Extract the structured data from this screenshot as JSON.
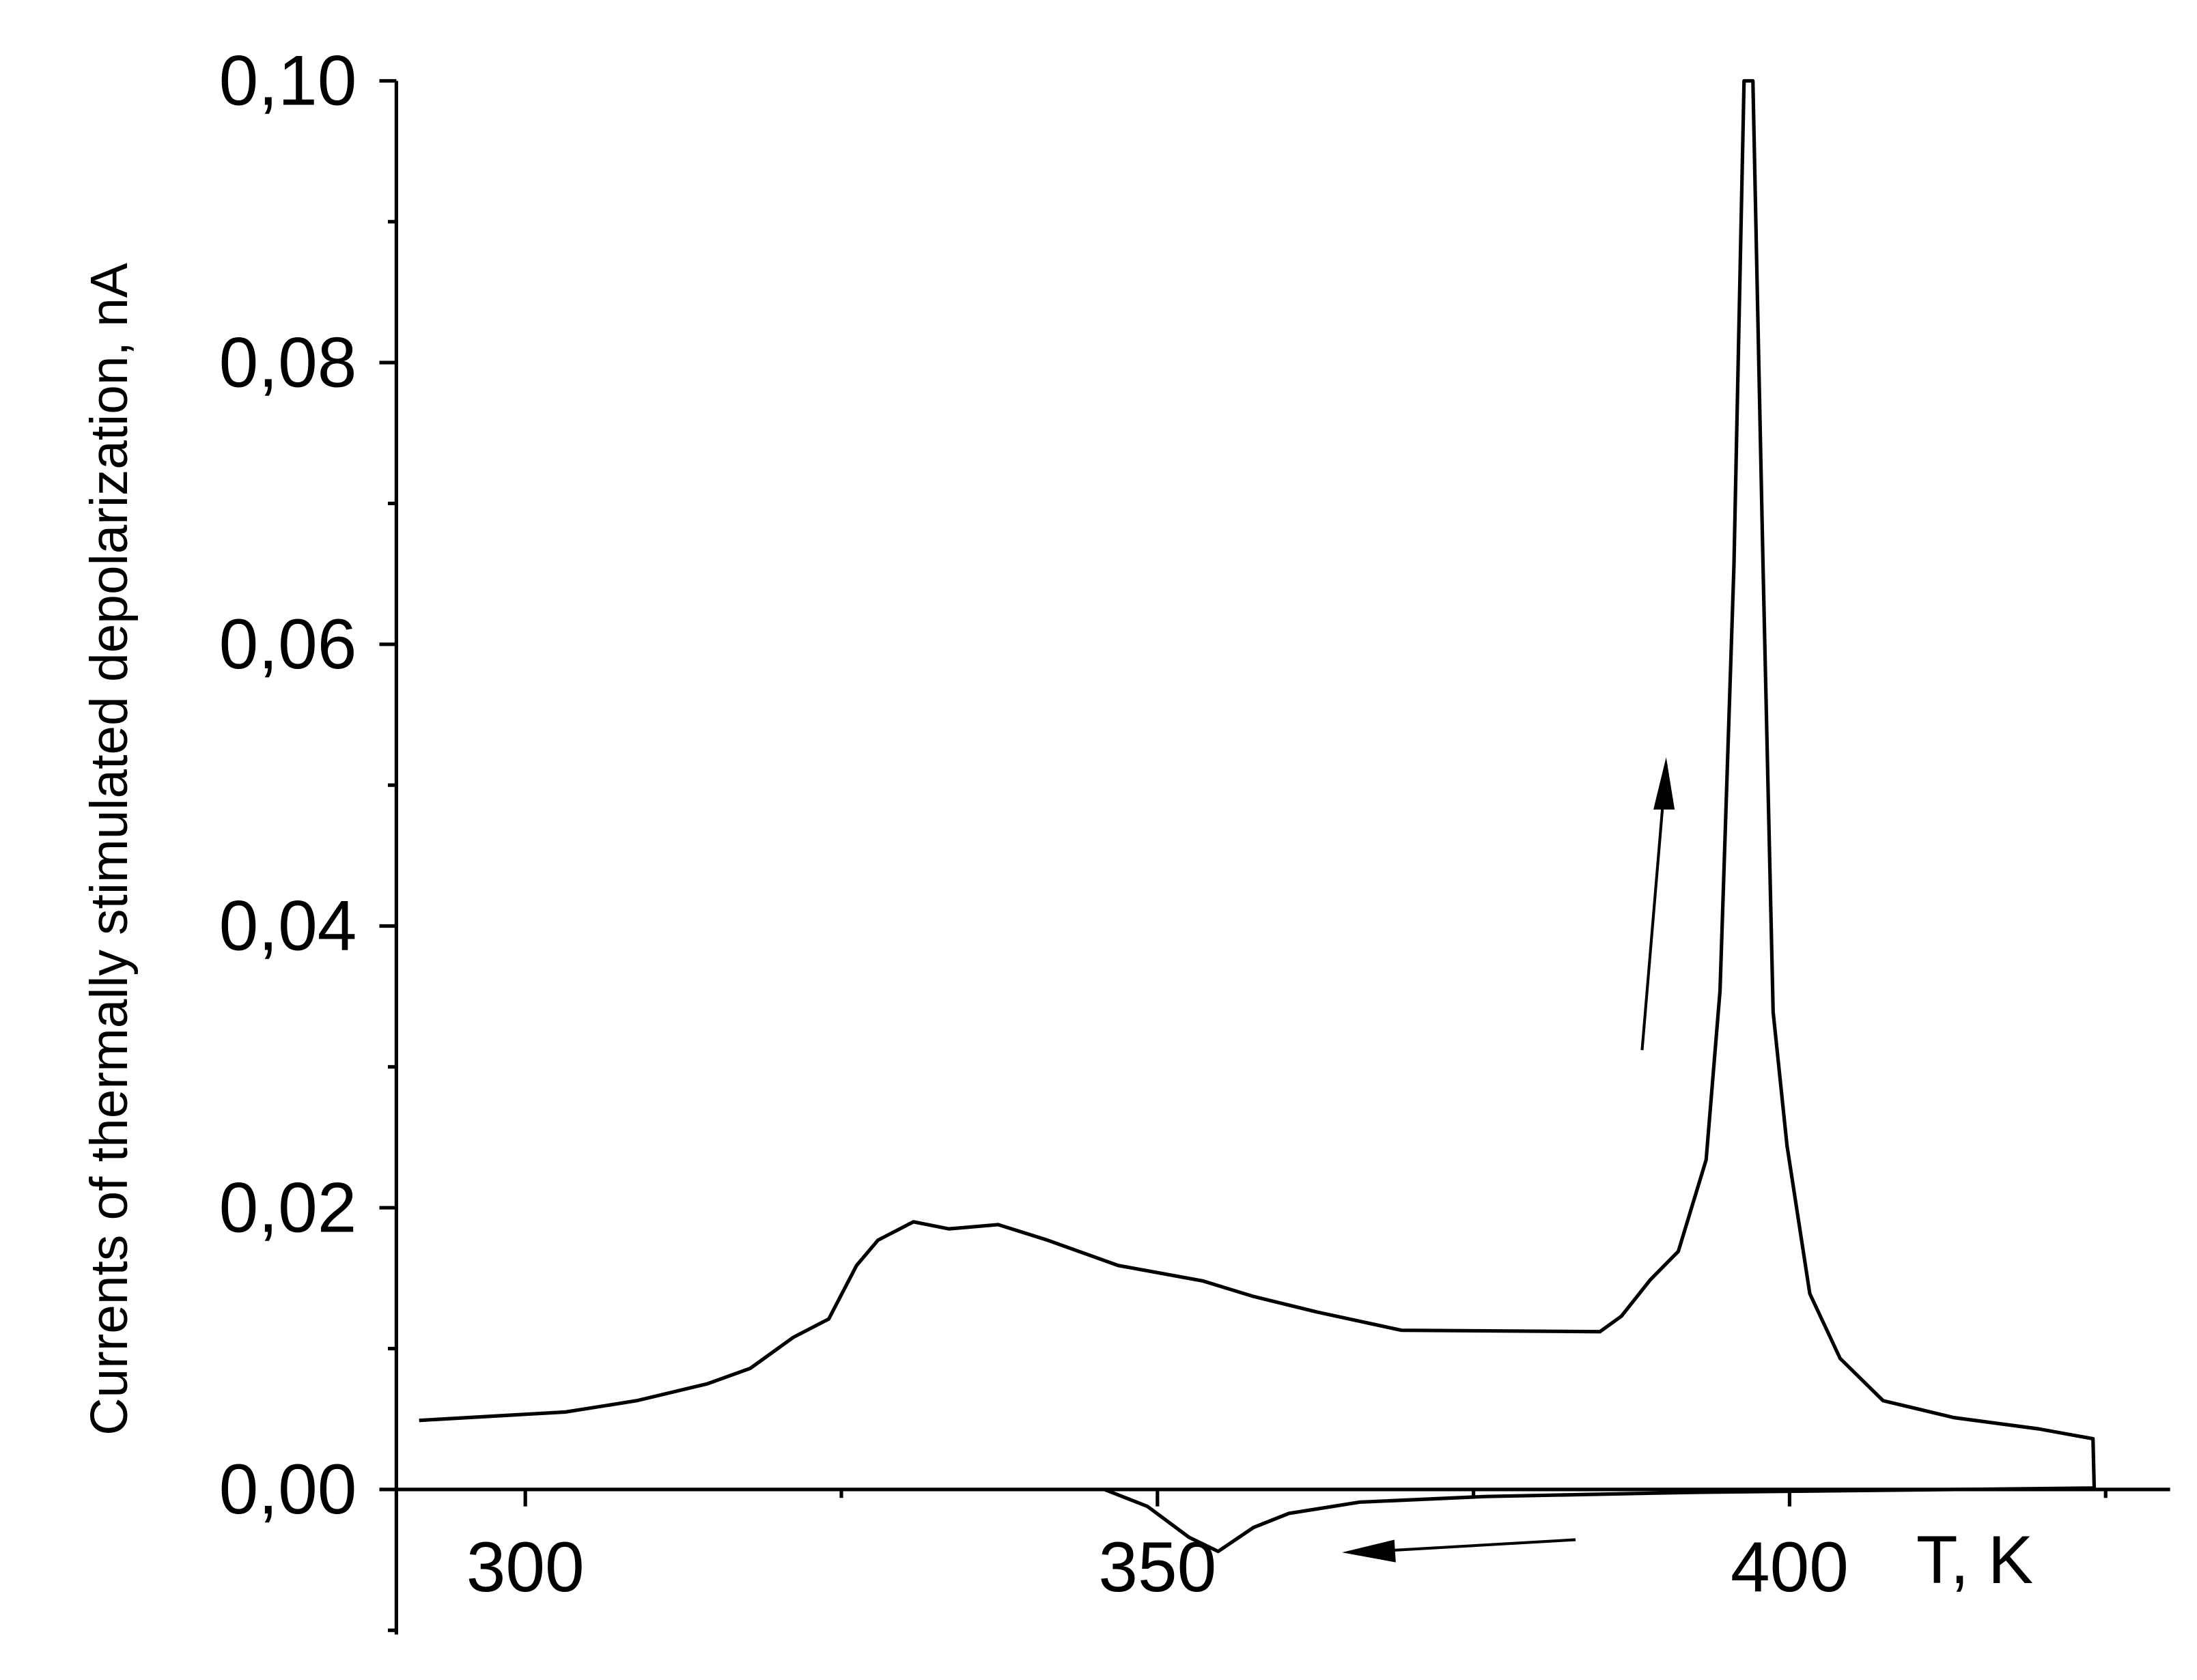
{
  "chart_data": {
    "type": "line",
    "y_label": "Currents of thermally stimulated depolarization, nA",
    "x_label": "T, K",
    "xlim": [
      289.8,
      430.1
    ],
    "ylim": [
      -0.0103,
      0.1
    ],
    "xticks": [
      300,
      350,
      400
    ],
    "xminorticks": [
      325,
      375,
      425
    ],
    "yticks": [
      {
        "value": 0,
        "label": "0,00"
      },
      {
        "value": 0.02,
        "label": "0,02"
      },
      {
        "value": 0.04,
        "label": "0,04"
      },
      {
        "value": 0.06,
        "label": "0,06"
      },
      {
        "value": 0.08,
        "label": "0,08"
      },
      {
        "value": 0.1,
        "label": "0,10"
      }
    ],
    "yminorticks": [
      -0.01,
      0.01,
      0.03,
      0.05,
      0.07,
      0.09
    ],
    "grid": false,
    "series": [
      {
        "color": "#000000",
        "x": [
          291.6,
          303.2,
          308.8,
          314.4,
          317.8,
          321.2,
          324.0,
          326.2,
          327.9,
          330.7,
          333.5,
          337.4,
          341.3,
          346.9,
          353.6,
          357.6,
          362.6,
          369.3,
          385.0,
          386.7,
          389.0,
          391.2,
          393.4,
          394.5,
          395.6,
          396.4,
          397.1,
          397.9,
          398.7,
          399.8,
          401.6,
          404.0,
          407.4,
          413.0,
          419.7,
          424.0,
          424.1
        ],
        "values": [
          0.0049,
          0.0055,
          0.0063,
          0.0075,
          0.0086,
          0.0108,
          0.0121,
          0.0159,
          0.0177,
          0.019,
          0.0185,
          0.0188,
          0.0177,
          0.0159,
          0.0148,
          0.0137,
          0.0126,
          0.0113,
          0.0112,
          0.0123,
          0.0149,
          0.0169,
          0.0234,
          0.0354,
          0.0656,
          0.1,
          0.1,
          0.0656,
          0.0339,
          0.0244,
          0.0139,
          0.0093,
          0.0063,
          0.0051,
          0.0043,
          0.0036,
          0.0
        ]
      },
      {
        "color": "#000000",
        "x": [
          424.0,
          392.8,
          376.0,
          366.0,
          360.4,
          357.6,
          354.8,
          352.5,
          349.2,
          345.8
        ],
        "values": [
          0.0001,
          -0.0002,
          -0.0005,
          -0.0009,
          -0.0017,
          -0.0027,
          -0.0044,
          -0.0034,
          -0.0012,
          0.0
        ]
      }
    ]
  }
}
